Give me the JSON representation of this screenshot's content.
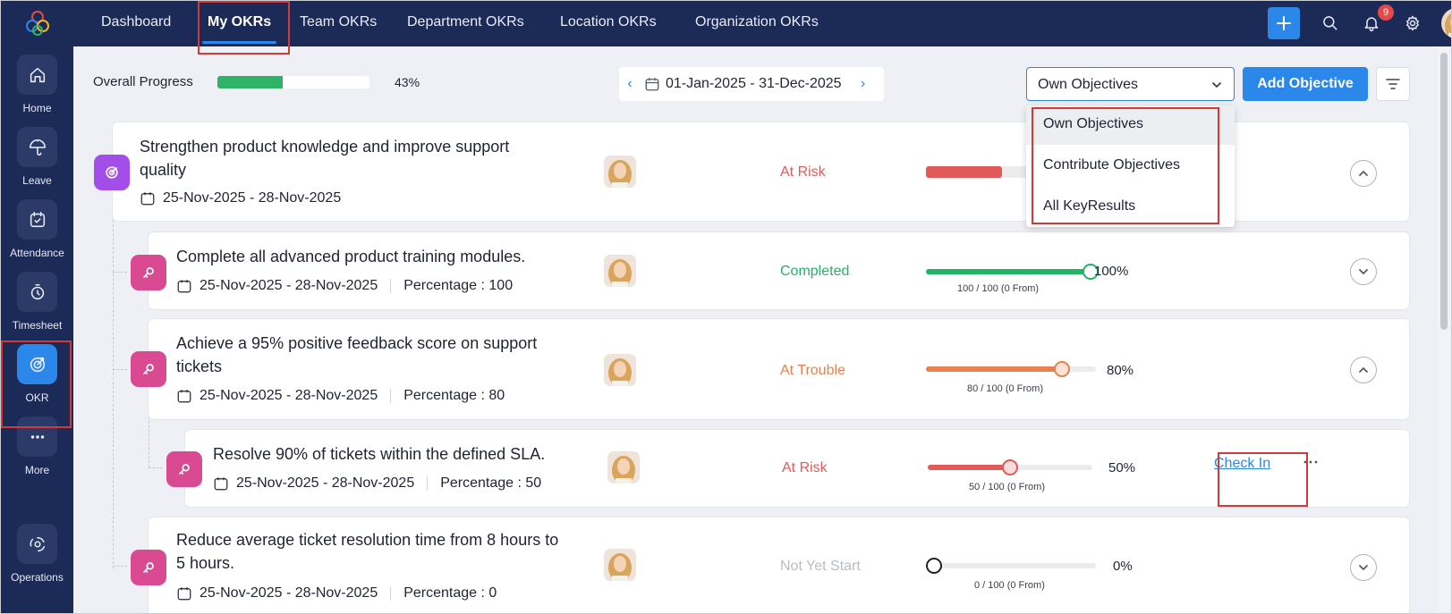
{
  "nav": {
    "tabs": [
      {
        "label": "Dashboard"
      },
      {
        "label": "My OKRs"
      },
      {
        "label": "Team OKRs"
      },
      {
        "label": "Department OKRs"
      },
      {
        "label": "Location OKRs"
      },
      {
        "label": "Organization OKRs"
      }
    ],
    "active_tab": "My OKRs",
    "notification_count": "9"
  },
  "sidebar": {
    "items": [
      {
        "label": "Home",
        "icon": "home-icon"
      },
      {
        "label": "Leave",
        "icon": "umbrella-icon"
      },
      {
        "label": "Attendance",
        "icon": "calendar-check-icon"
      },
      {
        "label": "Timesheet",
        "icon": "timer-icon"
      },
      {
        "label": "OKR",
        "icon": "target-icon"
      },
      {
        "label": "More",
        "icon": "more-icon"
      },
      {
        "label": "Operations",
        "icon": "operations-icon"
      }
    ],
    "active": "OKR"
  },
  "header": {
    "overall_label": "Overall Progress",
    "overall_progress": 43,
    "overall_pct": "43%",
    "date_range": "01-Jan-2025 - 31-Dec-2025",
    "filter_value": "Own Objectives",
    "add_label": "Add Objective"
  },
  "dropdown": {
    "options": [
      "Own Objectives",
      "Contribute Objectives",
      "All KeyResults"
    ],
    "selected": "Own Objectives"
  },
  "objective": {
    "title_line1": "Strengthen product knowledge and improve support",
    "title_line2": "quality",
    "dates": "25-Nov-2025 - 28-Nov-2025",
    "status": "At Risk",
    "progress": 50
  },
  "key_results": [
    {
      "title_line1": "Complete all advanced product training modules.",
      "title_line2": "",
      "dates": "25-Nov-2025 - 28-Nov-2025",
      "percentage_text": "Percentage : 100",
      "status": "Completed",
      "progress": 100,
      "pct": "100%",
      "from_text": "100 / 100 (0 From)"
    },
    {
      "title_line1": "Achieve a 95% positive feedback score on support",
      "title_line2": "tickets",
      "dates": "25-Nov-2025 - 28-Nov-2025",
      "percentage_text": "Percentage : 80",
      "status": "At Trouble",
      "progress": 80,
      "pct": "80%",
      "from_text": "80 / 100 (0 From)"
    },
    {
      "title_line1": "Resolve 90% of tickets within the defined SLA.",
      "title_line2": "",
      "dates": "25-Nov-2025 - 28-Nov-2025",
      "percentage_text": "Percentage : 50",
      "status": "At Risk",
      "progress": 50,
      "pct": "50%",
      "from_text": "50 / 100 (0 From)",
      "action": "Check In"
    },
    {
      "title_line1": "Reduce average ticket resolution time from 8 hours to",
      "title_line2": "5 hours.",
      "dates": "25-Nov-2025 - 28-Nov-2025",
      "percentage_text": "Percentage : 0",
      "status": "Not Yet Start",
      "progress": 0,
      "pct": "0%",
      "from_text": "0 / 100 (0 From)"
    }
  ],
  "colors": {
    "accent": "#2b87ea",
    "sidebar": "#1c2a57",
    "at_risk": "#e05a5a",
    "completed": "#24b366",
    "at_trouble": "#e8814f",
    "not_started": "#b8bcc4",
    "objective_icon": "#a34ee8",
    "kr_icon": "#d94a93"
  }
}
